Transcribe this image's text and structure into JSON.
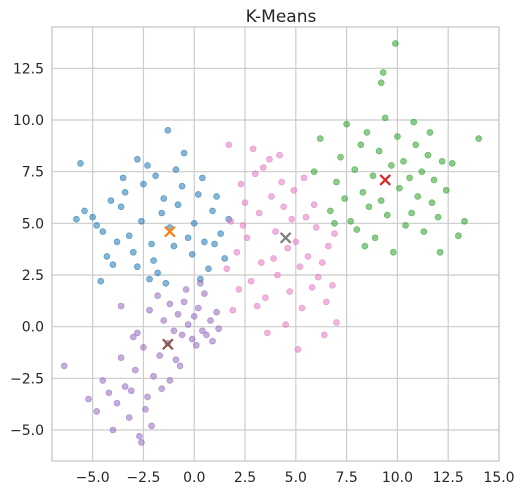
{
  "chart_data": {
    "type": "scatter",
    "title": "K-Means",
    "xlabel": "",
    "ylabel": "",
    "xlim": [
      -7.0,
      15.0
    ],
    "ylim": [
      -6.5,
      14.5
    ],
    "xticks": [
      -5.0,
      -2.5,
      0.0,
      2.5,
      5.0,
      7.5,
      10.0,
      12.5,
      15.0
    ],
    "yticks": [
      -5.0,
      -2.5,
      0.0,
      2.5,
      5.0,
      7.5,
      10.0,
      12.5
    ],
    "xtick_labels": [
      "−5.0",
      "−2.5",
      "0.0",
      "2.5",
      "5.0",
      "7.5",
      "10.0",
      "12.5",
      "15.0"
    ],
    "ytick_labels": [
      "−5.0",
      "−2.5",
      "0.0",
      "2.5",
      "5.0",
      "7.5",
      "10.0",
      "12.5"
    ],
    "grid": true,
    "legend": "none",
    "clusters": [
      {
        "color": "#1f77b4",
        "points": [
          [
            -5.6,
            7.9
          ],
          [
            -5.8,
            5.2
          ],
          [
            -5.4,
            5.6
          ],
          [
            -5.0,
            5.3
          ],
          [
            -4.8,
            4.9
          ],
          [
            -4.5,
            4.6
          ],
          [
            -4.3,
            3.4
          ],
          [
            -4.0,
            3.0
          ],
          [
            -4.6,
            2.2
          ],
          [
            -3.8,
            4.1
          ],
          [
            -3.6,
            5.8
          ],
          [
            -3.4,
            6.5
          ],
          [
            -3.2,
            4.4
          ],
          [
            -3.0,
            3.6
          ],
          [
            -2.8,
            2.9
          ],
          [
            -2.6,
            5.1
          ],
          [
            -2.5,
            6.9
          ],
          [
            -2.3,
            7.8
          ],
          [
            -2.1,
            4.0
          ],
          [
            -2.0,
            3.2
          ],
          [
            -1.8,
            2.6
          ],
          [
            -1.6,
            5.5
          ],
          [
            -1.5,
            6.2
          ],
          [
            -1.3,
            9.5
          ],
          [
            -1.2,
            4.8
          ],
          [
            -1.0,
            3.9
          ],
          [
            -0.8,
            5.9
          ],
          [
            -0.6,
            6.8
          ],
          [
            -0.5,
            8.4
          ],
          [
            -0.3,
            4.3
          ],
          [
            -0.1,
            3.5
          ],
          [
            0.0,
            5.0
          ],
          [
            0.2,
            6.4
          ],
          [
            0.4,
            7.2
          ],
          [
            0.5,
            4.1
          ],
          [
            0.7,
            2.8
          ],
          [
            0.9,
            5.6
          ],
          [
            1.1,
            6.3
          ],
          [
            1.3,
            4.5
          ],
          [
            1.5,
            3.3
          ],
          [
            1.7,
            5.2
          ],
          [
            -2.8,
            8.1
          ],
          [
            -1.9,
            7.3
          ],
          [
            -0.9,
            7.6
          ],
          [
            -3.5,
            7.2
          ],
          [
            -4.1,
            6.1
          ],
          [
            -2.2,
            2.3
          ],
          [
            -1.4,
            2.1
          ],
          [
            0.3,
            2.3
          ],
          [
            1.0,
            4.0
          ]
        ]
      },
      {
        "color": "#9467bd",
        "points": [
          [
            -6.4,
            -1.9
          ],
          [
            -5.2,
            -3.5
          ],
          [
            -4.8,
            -4.1
          ],
          [
            -4.5,
            -2.6
          ],
          [
            -4.2,
            -3.2
          ],
          [
            -4.0,
            -5.0
          ],
          [
            -3.8,
            -3.7
          ],
          [
            -3.6,
            -1.5
          ],
          [
            -3.4,
            -2.9
          ],
          [
            -3.2,
            -4.4
          ],
          [
            -3.0,
            -0.5
          ],
          [
            -2.9,
            -2.1
          ],
          [
            -2.7,
            -5.3
          ],
          [
            -2.6,
            -5.6
          ],
          [
            -2.5,
            -1.0
          ],
          [
            -2.3,
            -3.4
          ],
          [
            -2.2,
            0.8
          ],
          [
            -2.0,
            -2.4
          ],
          [
            -1.8,
            1.5
          ],
          [
            -1.7,
            -1.4
          ],
          [
            -1.5,
            0.3
          ],
          [
            -1.3,
            -0.8
          ],
          [
            -1.2,
            1.1
          ],
          [
            -1.0,
            -0.2
          ],
          [
            -0.8,
            0.6
          ],
          [
            -0.6,
            -0.4
          ],
          [
            -0.5,
            1.2
          ],
          [
            -0.3,
            0.1
          ],
          [
            -0.1,
            -0.6
          ],
          [
            0.0,
            0.5
          ],
          [
            0.1,
            -0.9
          ],
          [
            0.2,
            0.9
          ],
          [
            0.4,
            -0.2
          ],
          [
            0.5,
            1.6
          ],
          [
            0.6,
            -0.4
          ],
          [
            0.8,
            0.3
          ],
          [
            0.9,
            -0.7
          ],
          [
            1.1,
            0.7
          ],
          [
            -0.4,
            1.8
          ],
          [
            0.3,
            2.1
          ],
          [
            -1.6,
            -3.0
          ],
          [
            -2.4,
            -4.0
          ],
          [
            -3.1,
            -3.1
          ],
          [
            -0.9,
            -1.6
          ],
          [
            -2.8,
            -0.3
          ],
          [
            -3.6,
            1.0
          ],
          [
            -1.2,
            -2.6
          ],
          [
            -0.7,
            -1.9
          ],
          [
            1.2,
            -0.1
          ],
          [
            -2.1,
            -4.8
          ]
        ]
      },
      {
        "color": "#e377c2",
        "points": [
          [
            1.7,
            8.8
          ],
          [
            1.8,
            5.1
          ],
          [
            1.6,
            2.8
          ],
          [
            1.9,
            0.8
          ],
          [
            2.1,
            3.6
          ],
          [
            2.3,
            6.9
          ],
          [
            2.5,
            6.0
          ],
          [
            2.6,
            4.3
          ],
          [
            2.8,
            2.2
          ],
          [
            3.0,
            7.4
          ],
          [
            3.2,
            5.5
          ],
          [
            3.3,
            3.1
          ],
          [
            3.5,
            1.4
          ],
          [
            3.7,
            8.1
          ],
          [
            3.8,
            6.3
          ],
          [
            4.0,
            4.6
          ],
          [
            4.1,
            2.5
          ],
          [
            4.3,
            7.0
          ],
          [
            4.4,
            5.8
          ],
          [
            4.6,
            3.8
          ],
          [
            4.7,
            1.7
          ],
          [
            4.9,
            6.6
          ],
          [
            5.0,
            4.1
          ],
          [
            5.2,
            2.9
          ],
          [
            5.3,
            0.9
          ],
          [
            5.5,
            5.3
          ],
          [
            5.6,
            3.4
          ],
          [
            5.8,
            1.9
          ],
          [
            6.0,
            4.8
          ],
          [
            6.1,
            2.4
          ],
          [
            6.3,
            3.1
          ],
          [
            6.5,
            1.2
          ],
          [
            6.6,
            3.9
          ],
          [
            6.8,
            2.0
          ],
          [
            7.0,
            0.2
          ],
          [
            3.6,
            -0.3
          ],
          [
            4.5,
            0.1
          ],
          [
            5.1,
            -1.1
          ],
          [
            2.9,
            8.6
          ],
          [
            4.2,
            8.3
          ],
          [
            3.4,
            7.7
          ],
          [
            5.4,
            7.2
          ],
          [
            2.4,
            4.9
          ],
          [
            4.8,
            5.2
          ],
          [
            5.9,
            5.9
          ],
          [
            6.9,
            4.5
          ],
          [
            3.1,
            1.0
          ],
          [
            2.2,
            1.8
          ],
          [
            6.4,
            -0.4
          ],
          [
            3.9,
            3.3
          ]
        ]
      },
      {
        "color": "#2ca02c",
        "points": [
          [
            5.9,
            7.5
          ],
          [
            6.2,
            9.1
          ],
          [
            6.7,
            5.6
          ],
          [
            7.0,
            7.0
          ],
          [
            7.2,
            8.2
          ],
          [
            7.4,
            6.2
          ],
          [
            7.5,
            9.8
          ],
          [
            7.7,
            5.1
          ],
          [
            7.9,
            7.6
          ],
          [
            8.0,
            4.7
          ],
          [
            8.2,
            8.8
          ],
          [
            8.3,
            6.5
          ],
          [
            8.5,
            9.4
          ],
          [
            8.6,
            5.8
          ],
          [
            8.8,
            7.3
          ],
          [
            8.9,
            4.3
          ],
          [
            9.1,
            8.5
          ],
          [
            9.2,
            6.1
          ],
          [
            9.4,
            10.1
          ],
          [
            9.5,
            5.4
          ],
          [
            9.7,
            7.8
          ],
          [
            9.8,
            3.6
          ],
          [
            10.0,
            9.2
          ],
          [
            10.1,
            6.7
          ],
          [
            10.3,
            8.0
          ],
          [
            10.4,
            4.9
          ],
          [
            10.6,
            7.2
          ],
          [
            10.7,
            5.5
          ],
          [
            10.9,
            8.8
          ],
          [
            11.0,
            6.3
          ],
          [
            11.2,
            7.5
          ],
          [
            11.3,
            4.6
          ],
          [
            11.5,
            8.3
          ],
          [
            11.7,
            6.0
          ],
          [
            11.8,
            7.1
          ],
          [
            12.0,
            5.3
          ],
          [
            12.2,
            8.0
          ],
          [
            12.4,
            6.6
          ],
          [
            12.7,
            7.9
          ],
          [
            13.0,
            4.4
          ],
          [
            13.3,
            5.1
          ],
          [
            14.0,
            9.1
          ],
          [
            9.9,
            13.7
          ],
          [
            9.2,
            11.8
          ],
          [
            9.3,
            12.3
          ],
          [
            6.9,
            5.0
          ],
          [
            8.4,
            3.9
          ],
          [
            10.8,
            9.9
          ],
          [
            11.6,
            9.4
          ],
          [
            12.1,
            3.6
          ]
        ]
      }
    ],
    "centroids": [
      {
        "x": -1.2,
        "y": 4.6,
        "color": "#ff7f0e"
      },
      {
        "x": -1.3,
        "y": -0.85,
        "color": "#8c564b"
      },
      {
        "x": 4.5,
        "y": 4.3,
        "color": "#7f7f7f"
      },
      {
        "x": 9.4,
        "y": 7.1,
        "color": "#d62728"
      }
    ]
  }
}
